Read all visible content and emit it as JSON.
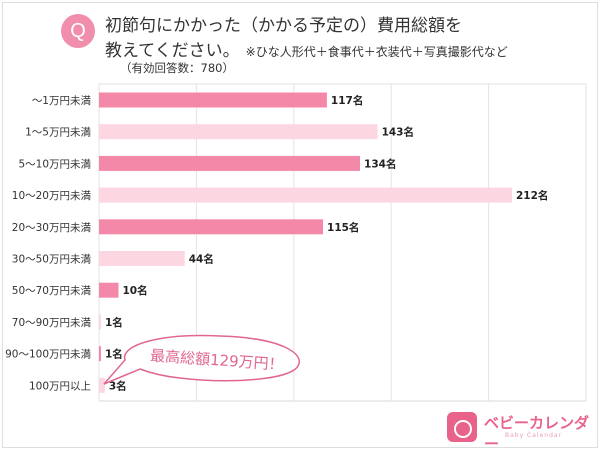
{
  "header": {
    "badge": "Q",
    "title_line1": "初節句にかかった（かかる予定の）費用総額を",
    "title_line2": "教えてください。",
    "note": "※ひな人形代＋食事代＋衣装代＋写真撮影代など",
    "responses": "（有効回答数：780）"
  },
  "chart_data": {
    "type": "bar",
    "orientation": "horizontal",
    "categories": [
      "〜1万円未満",
      "1〜5万円未満",
      "5〜10万円未満",
      "10〜20万円未満",
      "20〜30万円未満",
      "30〜50万円未満",
      "50〜70万円未満",
      "70〜90万円未満",
      "90〜100万円未満",
      "100万円以上"
    ],
    "values": [
      117,
      143,
      134,
      212,
      115,
      44,
      10,
      1,
      1,
      3
    ],
    "value_labels": [
      "117名",
      "143名",
      "134名",
      "212名",
      "115名",
      "44名",
      "10名",
      "1名",
      "1名",
      "3名"
    ],
    "xlim": [
      0,
      250
    ],
    "grid": true,
    "colors": [
      "#f388a9",
      "#fcd6e1"
    ],
    "annotation": "最高総額129万円！"
  },
  "logo": {
    "text": "ベビーカレンダー",
    "sub": "Baby Calendar",
    "color": "#e8628a"
  }
}
